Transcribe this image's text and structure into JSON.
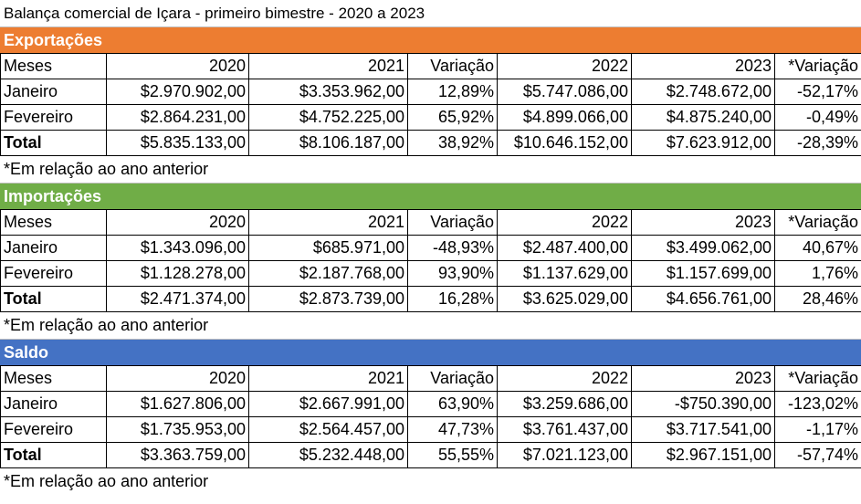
{
  "title": "Balança comercial de Içara - primeiro bimestre - 2020 a 2023",
  "headers": [
    "Meses",
    "2020",
    "2021",
    "Variação",
    "2022",
    "2023",
    "*Variação"
  ],
  "note": "*Em relação ao ano anterior",
  "sections": [
    {
      "name": "Exportações",
      "color": "#ED7D31",
      "rows": [
        [
          "Janeiro",
          "$2.970.902,00",
          "$3.353.962,00",
          "12,89%",
          "$5.747.086,00",
          "$2.748.672,00",
          "-52,17%"
        ],
        [
          "Fevereiro",
          "$2.864.231,00",
          "$4.752.225,00",
          "65,92%",
          "$4.899.066,00",
          "$4.875.240,00",
          "-0,49%"
        ],
        [
          "Total",
          "$5.835.133,00",
          "$8.106.187,00",
          "38,92%",
          "$10.646.152,00",
          "$7.623.912,00",
          "-28,39%"
        ]
      ]
    },
    {
      "name": "Importações",
      "color": "#70AD47",
      "rows": [
        [
          "Janeiro",
          "$1.343.096,00",
          "$685.971,00",
          "-48,93%",
          "$2.487.400,00",
          "$3.499.062,00",
          "40,67%"
        ],
        [
          "Fevereiro",
          "$1.128.278,00",
          "$2.187.768,00",
          "93,90%",
          "$1.137.629,00",
          "$1.157.699,00",
          "1,76%"
        ],
        [
          "Total",
          "$2.471.374,00",
          "$2.873.739,00",
          "16,28%",
          "$3.625.029,00",
          "$4.656.761,00",
          "28,46%"
        ]
      ]
    },
    {
      "name": "Saldo",
      "color": "#4472C4",
      "rows": [
        [
          "Janeiro",
          "$1.627.806,00",
          "$2.667.991,00",
          "63,90%",
          "$3.259.686,00",
          "-$750.390,00",
          "-123,02%"
        ],
        [
          "Fevereiro",
          "$1.735.953,00",
          "$2.564.457,00",
          "47,73%",
          "$3.761.437,00",
          "$3.717.541,00",
          "-1,17%"
        ],
        [
          "Total",
          "$3.363.759,00",
          "$5.232.448,00",
          "55,55%",
          "$7.021.123,00",
          "$2.967.151,00",
          "-57,74%"
        ]
      ]
    }
  ]
}
